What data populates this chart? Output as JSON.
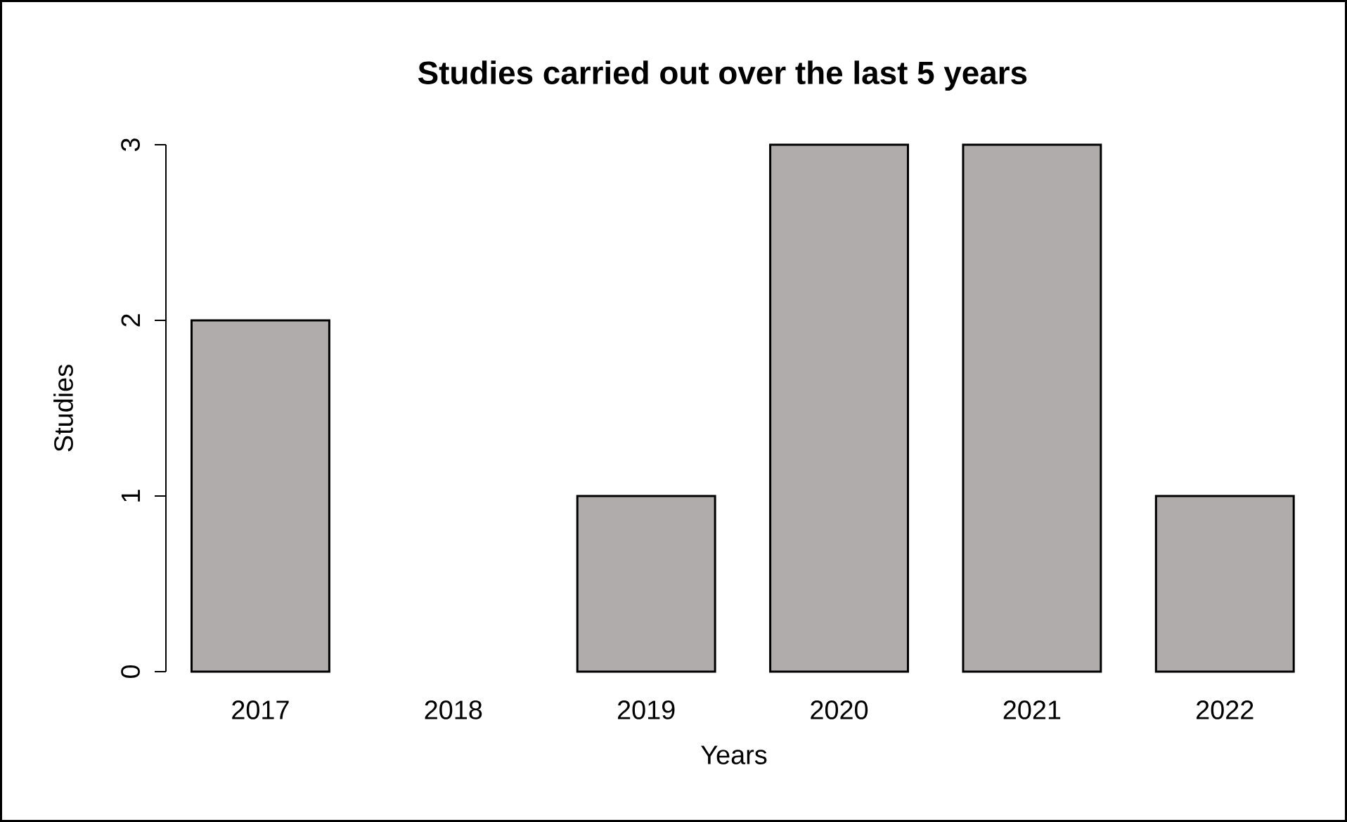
{
  "chart_data": {
    "type": "bar",
    "title": "Studies carried out over the last 5 years",
    "xlabel": "Years",
    "ylabel": "Studies",
    "categories": [
      "2017",
      "2018",
      "2019",
      "2020",
      "2021",
      "2022"
    ],
    "values": [
      2,
      0,
      1,
      3,
      3,
      1
    ],
    "color": "#b0acac",
    "ylim": [
      0,
      3
    ],
    "yticks": [
      0,
      1,
      2,
      3
    ]
  }
}
